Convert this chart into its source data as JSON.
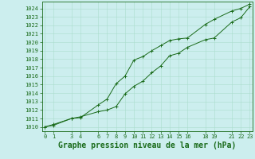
{
  "title": "Graphe pression niveau de la mer (hPa)",
  "bg_color": "#cceeee",
  "line_color": "#1a6b1a",
  "grid_color": "#aaddcc",
  "text_color": "#1a6b1a",
  "ylim": [
    1009.5,
    1024.8
  ],
  "xlim": [
    -0.3,
    23.3
  ],
  "yticks": [
    1010,
    1011,
    1012,
    1013,
    1014,
    1015,
    1016,
    1017,
    1018,
    1019,
    1020,
    1021,
    1022,
    1023,
    1024
  ],
  "xticks": [
    0,
    1,
    3,
    4,
    6,
    7,
    8,
    9,
    10,
    11,
    12,
    13,
    14,
    15,
    16,
    18,
    19,
    21,
    22,
    23
  ],
  "line1_x": [
    0,
    1,
    3,
    4,
    6,
    7,
    8,
    9,
    10,
    11,
    12,
    13,
    14,
    15,
    16,
    18,
    19,
    21,
    22,
    23
  ],
  "line1_y": [
    1010.0,
    1010.3,
    1011.0,
    1011.2,
    1011.8,
    1012.0,
    1012.4,
    1013.9,
    1014.8,
    1015.4,
    1016.4,
    1017.2,
    1018.4,
    1018.7,
    1019.4,
    1020.3,
    1020.5,
    1022.4,
    1022.9,
    1024.2
  ],
  "line2_x": [
    0,
    1,
    3,
    4,
    6,
    7,
    8,
    9,
    10,
    11,
    12,
    13,
    14,
    15,
    16,
    18,
    19,
    21,
    22,
    23
  ],
  "line2_y": [
    1010.0,
    1010.2,
    1011.0,
    1011.1,
    1012.6,
    1013.3,
    1015.1,
    1016.0,
    1017.9,
    1018.3,
    1019.0,
    1019.6,
    1020.2,
    1020.4,
    1020.5,
    1022.1,
    1022.7,
    1023.7,
    1024.0,
    1024.5
  ],
  "tick_fontsize": 5.0,
  "title_fontsize": 7.0,
  "marker_size": 3.0,
  "line_width": 0.7
}
